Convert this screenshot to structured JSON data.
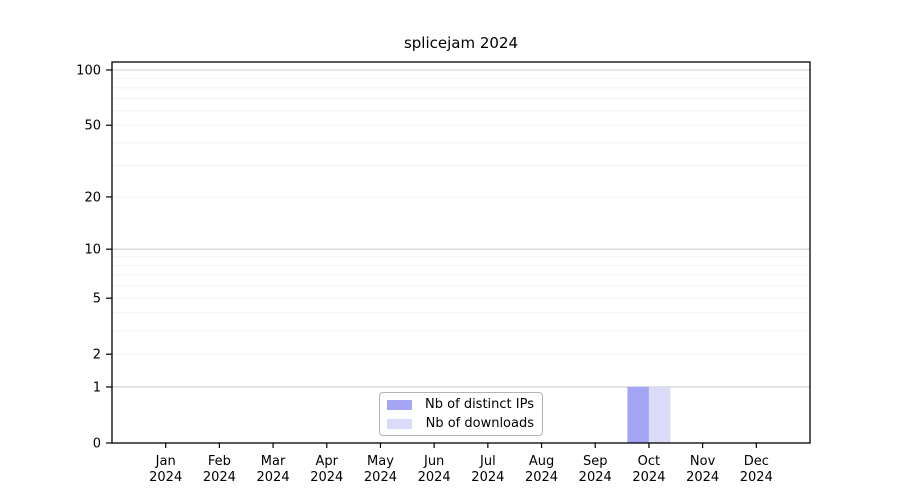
{
  "chart_data": {
    "type": "bar",
    "title": "splicejam 2024",
    "categories": [
      "Jan 2024",
      "Feb 2024",
      "Mar 2024",
      "Apr 2024",
      "May 2024",
      "Jun 2024",
      "Jul 2024",
      "Aug 2024",
      "Sep 2024",
      "Oct 2024",
      "Nov 2024",
      "Dec 2024"
    ],
    "series": [
      {
        "name": "Nb of distinct IPs",
        "color": "#a5a5f5",
        "values": [
          0,
          0,
          0,
          0,
          0,
          0,
          0,
          0,
          0,
          1,
          0,
          0
        ]
      },
      {
        "name": "Nb of downloads",
        "color": "#dbdbf8",
        "values": [
          0,
          0,
          0,
          0,
          0,
          0,
          0,
          0,
          0,
          1,
          0,
          0
        ]
      }
    ],
    "xlabel": "",
    "ylabel": "",
    "yscale": "log1p",
    "ylim": [
      0,
      110
    ],
    "yticks": [
      0,
      1,
      2,
      5,
      10,
      20,
      50,
      100
    ],
    "grid": {
      "show": true,
      "orientation": "horizontal",
      "minor_values": [
        2,
        3,
        4,
        5,
        6,
        7,
        8,
        9,
        20,
        30,
        40,
        50,
        60,
        70,
        80,
        90
      ],
      "decade_values": [
        1,
        10,
        100
      ],
      "minor_color": "#f2f2f2",
      "decade_color": "#cccccc"
    },
    "legend_position": "bottom-center-inside",
    "legend_border_color": "#b3b3b3",
    "axis_color": "#000000",
    "background_color": "#ffffff"
  }
}
